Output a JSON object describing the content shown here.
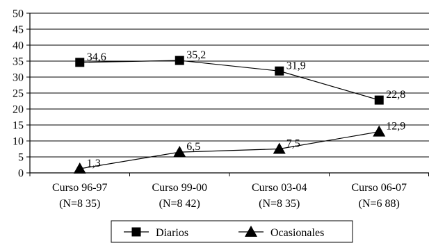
{
  "chart_data": {
    "type": "line",
    "title": "",
    "xlabel": "",
    "ylabel": "",
    "ylim": [
      0,
      50
    ],
    "ytick_step": 5,
    "grid": true,
    "legend_position": "bottom",
    "categories": [
      [
        "Curso 96-97",
        "(N=8 35)"
      ],
      [
        "Curso 99-00",
        "(N=8 42)"
      ],
      [
        "Curso 03-04",
        "(N=8 35)"
      ],
      [
        "Curso 06-07",
        "(N=6 88)"
      ]
    ],
    "series": [
      {
        "name": "Diarios",
        "marker": "square",
        "values": [
          34.6,
          35.2,
          31.9,
          22.8
        ],
        "labels": [
          "34,6",
          "35,2",
          "31,9",
          "22,8"
        ]
      },
      {
        "name": "Ocasionales",
        "marker": "triangle",
        "values": [
          1.3,
          6.5,
          7.5,
          12.9
        ],
        "labels": [
          "1,3",
          "6,5",
          "7,5",
          "12,9"
        ]
      }
    ]
  }
}
